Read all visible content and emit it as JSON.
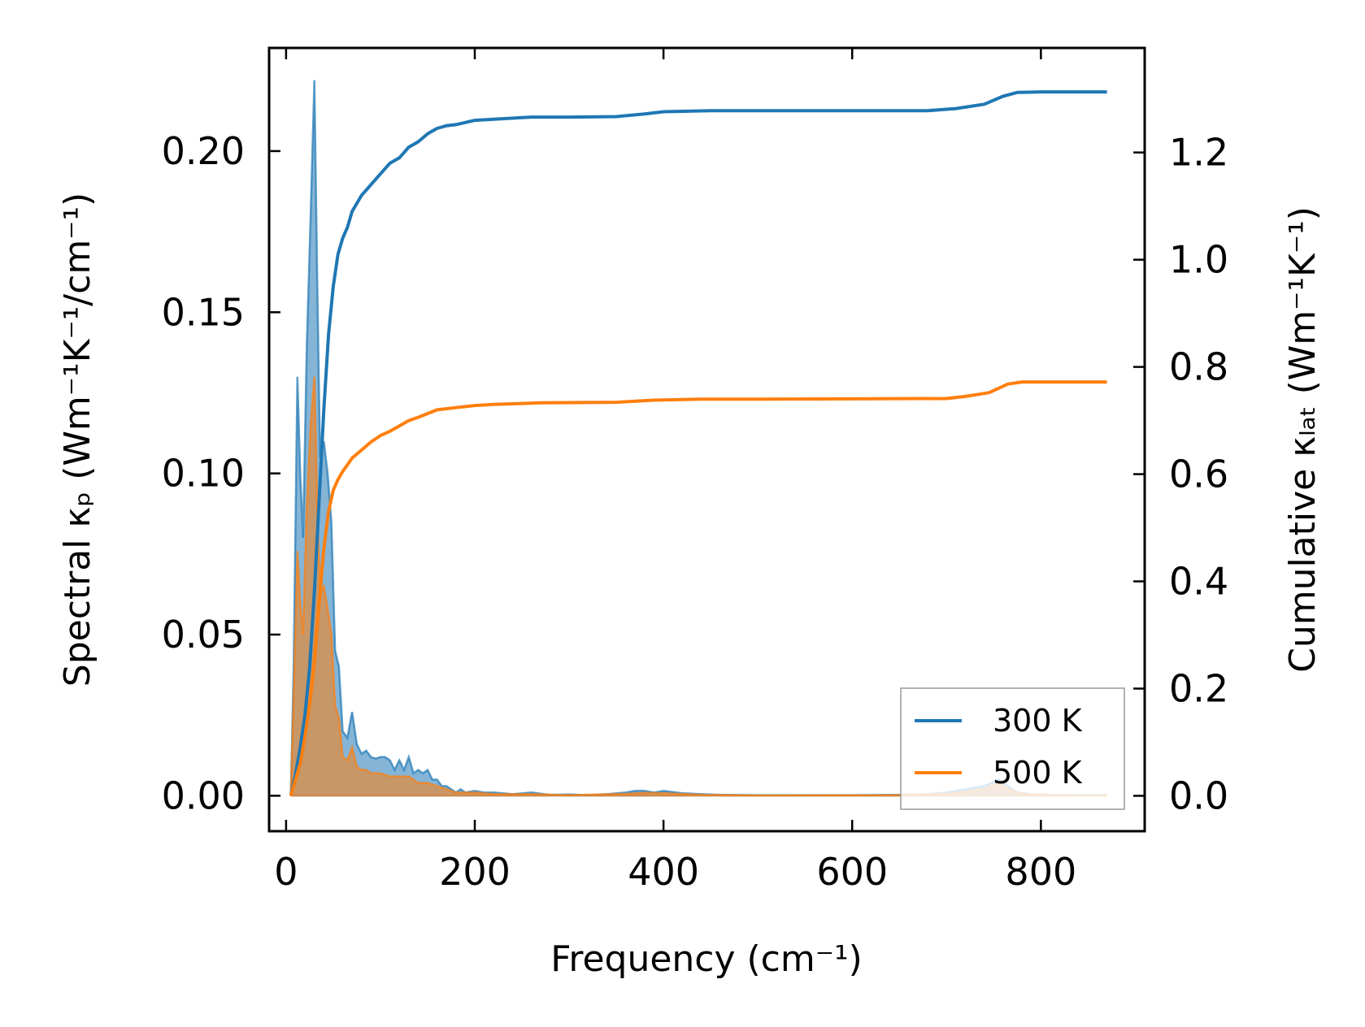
{
  "chart_data": {
    "type": "line",
    "xlabel": "Frequency (cm⁻¹)",
    "ylabel": "Spectral κₚ (Wm⁻¹K⁻¹/cm⁻¹)",
    "ylabel_right": "Cumulative κₗₐₜ (Wm⁻¹K⁻¹)",
    "xlim": [
      -18,
      910
    ],
    "ylim": [
      -0.011,
      0.232
    ],
    "ylim_right": [
      -0.066,
      1.395
    ],
    "x_ticks": [
      0,
      200,
      400,
      600,
      800
    ],
    "x_tick_labels": [
      "0",
      "200",
      "400",
      "600",
      "800"
    ],
    "y_ticks": [
      0.0,
      0.05,
      0.1,
      0.15,
      0.2
    ],
    "y_tick_labels": [
      "0.00",
      "0.05",
      "0.10",
      "0.15",
      "0.20"
    ],
    "y_right_ticks": [
      0.0,
      0.2,
      0.4,
      0.6,
      0.8,
      1.0,
      1.2
    ],
    "y_right_tick_labels": [
      "0.0",
      "0.2",
      "0.4",
      "0.6",
      "0.8",
      "1.0",
      "1.2"
    ],
    "legend_position": "lower-right",
    "grid": false,
    "colors": {
      "300 K": "#1f77b4",
      "500 K": "#ff7f0e"
    },
    "spectral_series": [
      {
        "name": "300 K",
        "axis": "left",
        "points": [
          [
            5,
            0.0
          ],
          [
            8,
            0.04
          ],
          [
            12,
            0.13
          ],
          [
            15,
            0.1
          ],
          [
            18,
            0.08
          ],
          [
            22,
            0.14
          ],
          [
            26,
            0.18
          ],
          [
            30,
            0.222
          ],
          [
            33,
            0.16
          ],
          [
            36,
            0.105
          ],
          [
            40,
            0.11
          ],
          [
            44,
            0.1
          ],
          [
            48,
            0.085
          ],
          [
            52,
            0.045
          ],
          [
            56,
            0.04
          ],
          [
            60,
            0.02
          ],
          [
            65,
            0.018
          ],
          [
            70,
            0.026
          ],
          [
            75,
            0.016
          ],
          [
            80,
            0.013
          ],
          [
            85,
            0.014
          ],
          [
            90,
            0.012
          ],
          [
            95,
            0.0115
          ],
          [
            100,
            0.012
          ],
          [
            105,
            0.012
          ],
          [
            110,
            0.011
          ],
          [
            115,
            0.008
          ],
          [
            120,
            0.011
          ],
          [
            125,
            0.008
          ],
          [
            130,
            0.012
          ],
          [
            135,
            0.007
          ],
          [
            140,
            0.008
          ],
          [
            145,
            0.007
          ],
          [
            150,
            0.008
          ],
          [
            155,
            0.005
          ],
          [
            160,
            0.005
          ],
          [
            165,
            0.003
          ],
          [
            170,
            0.003
          ],
          [
            175,
            0.002
          ],
          [
            180,
            0.001
          ],
          [
            185,
            0.002
          ],
          [
            190,
            0.001
          ],
          [
            200,
            0.0015
          ],
          [
            210,
            0.001
          ],
          [
            220,
            0.001
          ],
          [
            240,
            0.0005
          ],
          [
            260,
            0.001
          ],
          [
            280,
            0.0003
          ],
          [
            300,
            0.0004
          ],
          [
            320,
            0.0002
          ],
          [
            340,
            0.0005
          ],
          [
            360,
            0.001
          ],
          [
            370,
            0.0015
          ],
          [
            380,
            0.0015
          ],
          [
            390,
            0.001
          ],
          [
            400,
            0.0015
          ],
          [
            420,
            0.0008
          ],
          [
            440,
            0.0005
          ],
          [
            460,
            0.0003
          ],
          [
            500,
            0.0002
          ],
          [
            600,
            0.0002
          ],
          [
            650,
            0.0003
          ],
          [
            680,
            0.0005
          ],
          [
            700,
            0.001
          ],
          [
            720,
            0.002
          ],
          [
            740,
            0.003
          ],
          [
            755,
            0.005
          ],
          [
            765,
            0.003
          ],
          [
            775,
            0.001
          ],
          [
            790,
            0.0005
          ],
          [
            810,
            0.0003
          ],
          [
            870,
            0.0002
          ]
        ]
      },
      {
        "name": "500 K",
        "axis": "left",
        "points": [
          [
            5,
            0.0
          ],
          [
            8,
            0.03
          ],
          [
            12,
            0.076
          ],
          [
            15,
            0.06
          ],
          [
            18,
            0.05
          ],
          [
            22,
            0.09
          ],
          [
            26,
            0.115
          ],
          [
            30,
            0.13
          ],
          [
            33,
            0.09
          ],
          [
            36,
            0.063
          ],
          [
            40,
            0.065
          ],
          [
            44,
            0.058
          ],
          [
            48,
            0.05
          ],
          [
            52,
            0.028
          ],
          [
            56,
            0.024
          ],
          [
            60,
            0.012
          ],
          [
            65,
            0.011
          ],
          [
            70,
            0.015
          ],
          [
            75,
            0.009
          ],
          [
            80,
            0.008
          ],
          [
            85,
            0.008
          ],
          [
            90,
            0.007
          ],
          [
            95,
            0.007
          ],
          [
            100,
            0.007
          ],
          [
            110,
            0.006
          ],
          [
            120,
            0.006
          ],
          [
            130,
            0.006
          ],
          [
            140,
            0.004
          ],
          [
            150,
            0.004
          ],
          [
            160,
            0.003
          ],
          [
            170,
            0.002
          ],
          [
            180,
            0.001
          ],
          [
            200,
            0.001
          ],
          [
            220,
            0.0005
          ],
          [
            260,
            0.0005
          ],
          [
            300,
            0.0002
          ],
          [
            360,
            0.0006
          ],
          [
            380,
            0.0009
          ],
          [
            400,
            0.0008
          ],
          [
            440,
            0.0003
          ],
          [
            500,
            0.0001
          ],
          [
            650,
            0.0002
          ],
          [
            700,
            0.0006
          ],
          [
            720,
            0.0012
          ],
          [
            740,
            0.002
          ],
          [
            755,
            0.004
          ],
          [
            765,
            0.002
          ],
          [
            780,
            0.0006
          ],
          [
            810,
            0.0002
          ],
          [
            870,
            0.0001
          ]
        ]
      }
    ],
    "cumulative_series": [
      {
        "name": "300 K",
        "axis": "right",
        "points": [
          [
            5,
            0.0
          ],
          [
            10,
            0.04
          ],
          [
            15,
            0.09
          ],
          [
            20,
            0.15
          ],
          [
            25,
            0.24
          ],
          [
            30,
            0.38
          ],
          [
            35,
            0.55
          ],
          [
            40,
            0.72
          ],
          [
            45,
            0.86
          ],
          [
            50,
            0.95
          ],
          [
            55,
            1.01
          ],
          [
            60,
            1.04
          ],
          [
            65,
            1.06
          ],
          [
            70,
            1.09
          ],
          [
            80,
            1.12
          ],
          [
            90,
            1.14
          ],
          [
            100,
            1.16
          ],
          [
            110,
            1.18
          ],
          [
            120,
            1.19
          ],
          [
            130,
            1.21
          ],
          [
            140,
            1.22
          ],
          [
            150,
            1.235
          ],
          [
            160,
            1.245
          ],
          [
            170,
            1.25
          ],
          [
            180,
            1.252
          ],
          [
            200,
            1.26
          ],
          [
            220,
            1.262
          ],
          [
            260,
            1.266
          ],
          [
            300,
            1.266
          ],
          [
            350,
            1.267
          ],
          [
            380,
            1.272
          ],
          [
            400,
            1.276
          ],
          [
            450,
            1.278
          ],
          [
            500,
            1.278
          ],
          [
            680,
            1.278
          ],
          [
            710,
            1.282
          ],
          [
            740,
            1.29
          ],
          [
            760,
            1.305
          ],
          [
            775,
            1.312
          ],
          [
            800,
            1.313
          ],
          [
            870,
            1.313
          ]
        ]
      },
      {
        "name": "500 K",
        "axis": "right",
        "points": [
          [
            5,
            0.0
          ],
          [
            10,
            0.03
          ],
          [
            15,
            0.06
          ],
          [
            20,
            0.11
          ],
          [
            25,
            0.17
          ],
          [
            30,
            0.25
          ],
          [
            35,
            0.36
          ],
          [
            40,
            0.46
          ],
          [
            45,
            0.53
          ],
          [
            50,
            0.57
          ],
          [
            55,
            0.59
          ],
          [
            60,
            0.605
          ],
          [
            70,
            0.63
          ],
          [
            80,
            0.645
          ],
          [
            90,
            0.66
          ],
          [
            100,
            0.672
          ],
          [
            110,
            0.68
          ],
          [
            120,
            0.69
          ],
          [
            130,
            0.7
          ],
          [
            140,
            0.706
          ],
          [
            150,
            0.713
          ],
          [
            160,
            0.72
          ],
          [
            180,
            0.724
          ],
          [
            200,
            0.728
          ],
          [
            220,
            0.73
          ],
          [
            270,
            0.733
          ],
          [
            350,
            0.734
          ],
          [
            390,
            0.738
          ],
          [
            440,
            0.74
          ],
          [
            500,
            0.74
          ],
          [
            700,
            0.741
          ],
          [
            720,
            0.745
          ],
          [
            745,
            0.752
          ],
          [
            765,
            0.768
          ],
          [
            780,
            0.772
          ],
          [
            800,
            0.772
          ],
          [
            870,
            0.772
          ]
        ]
      }
    ],
    "legend": [
      {
        "label": "300 K",
        "color": "#1f77b4"
      },
      {
        "label": "500 K",
        "color": "#ff7f0e"
      }
    ]
  }
}
